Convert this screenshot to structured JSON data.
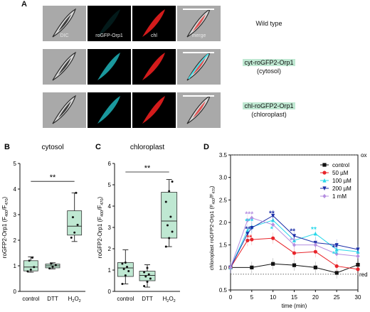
{
  "panel_a": {
    "letter": "A",
    "col_labels": [
      "DIC",
      "roGFP-Orp1",
      "chl",
      "merge"
    ],
    "rows": [
      {
        "label_line1": "Wild type",
        "label_line2": ""
      },
      {
        "label_line1": "cyt-roGFP2-Orp1",
        "label_line2": "(cytosol)"
      },
      {
        "label_line1": "chl-roGFP2-Orp1",
        "label_line2": "(chloroplast)"
      }
    ],
    "highlight_color": "#bfe8d2"
  },
  "chart_data": [
    {
      "panel": "B",
      "type": "box",
      "title": "cytosol",
      "ylabel": "roGFP2-Orp1 (F400/F470)",
      "categories": [
        "control",
        "DTT",
        "H2O2"
      ],
      "ylim": [
        0,
        5
      ],
      "yticks": [
        0,
        1,
        2,
        3,
        4,
        5
      ],
      "boxes": [
        {
          "min": 0.75,
          "q1": 0.8,
          "median": 0.95,
          "q3": 1.2,
          "max": 1.35,
          "points": [
            0.78,
            0.85,
            0.95,
            1.2,
            1.32
          ]
        },
        {
          "min": 0.88,
          "q1": 0.92,
          "median": 1.0,
          "q3": 1.07,
          "max": 1.12,
          "points": [
            0.9,
            0.97,
            1.02,
            1.08
          ]
        },
        {
          "min": 1.95,
          "q1": 2.2,
          "median": 2.55,
          "q3": 3.15,
          "max": 3.85,
          "points": [
            2.1,
            2.3,
            2.6,
            2.9,
            3.85
          ]
        }
      ],
      "significance": {
        "from": 0,
        "to": 2,
        "y": 4.3,
        "label": "**"
      },
      "box_color": "#bfe8d2"
    },
    {
      "panel": "C",
      "type": "box",
      "title": "chloroplast",
      "ylabel": "roGFP2-Orp1 (F400/F470)",
      "categories": [
        "control",
        "DTT",
        "H2O2"
      ],
      "ylim": [
        0,
        6
      ],
      "yticks": [
        0,
        1,
        2,
        3,
        4,
        5,
        6
      ],
      "boxes": [
        {
          "min": 0.35,
          "q1": 0.7,
          "median": 1.1,
          "q3": 1.35,
          "max": 1.95,
          "points": [
            0.35,
            0.75,
            0.95,
            1.05,
            1.15,
            1.3,
            1.35
          ]
        },
        {
          "min": 0.2,
          "q1": 0.5,
          "median": 0.75,
          "q3": 0.95,
          "max": 1.25,
          "points": [
            0.25,
            0.45,
            0.6,
            0.7,
            0.8,
            0.9,
            1.1
          ]
        },
        {
          "min": 2.1,
          "q1": 2.5,
          "median": 3.3,
          "q3": 4.65,
          "max": 5.25,
          "points": [
            2.1,
            2.5,
            2.8,
            3.1,
            3.5,
            4.2,
            4.7,
            5.15
          ]
        }
      ],
      "significance": {
        "from": 0,
        "to": 2,
        "y": 5.6,
        "label": "**"
      },
      "box_color": "#bfe8d2"
    },
    {
      "panel": "D",
      "type": "line",
      "ylabel": "chloroplast roGFP2-Orp1 (F400/F470)",
      "xlabel": "time (min)",
      "xlim": [
        0,
        30
      ],
      "ylim": [
        0.5,
        3.5
      ],
      "xticks": [
        0,
        5,
        10,
        15,
        20,
        25,
        30
      ],
      "yticks": [
        0.5,
        1.0,
        1.5,
        2.0,
        2.5,
        3.0,
        3.5
      ],
      "ox_level": 3.5,
      "red_level": 0.85,
      "ox_label": "ox",
      "red_label": "red",
      "legend_position": "top-right",
      "series": [
        {
          "name": "control",
          "color": "#111111",
          "marker": "square",
          "x": [
            0,
            5,
            10,
            15,
            20,
            25,
            30
          ],
          "y": [
            1.0,
            1.0,
            1.08,
            1.05,
            1.0,
            0.88,
            1.06
          ]
        },
        {
          "name": "50 µM",
          "color": "#e8242a",
          "marker": "circle",
          "x": [
            0,
            4,
            5,
            10,
            15,
            20,
            25,
            30
          ],
          "y": [
            1.0,
            1.6,
            1.62,
            1.65,
            1.32,
            1.35,
            1.03,
            0.96
          ]
        },
        {
          "name": "100 µM",
          "color": "#27d8ea",
          "marker": "triangle-up",
          "x": [
            0,
            4,
            5,
            10,
            15,
            20,
            25,
            30
          ],
          "y": [
            1.0,
            1.82,
            1.9,
            2.05,
            1.6,
            1.75,
            1.4,
            1.35
          ]
        },
        {
          "name": "200 µM",
          "color": "#1d2fa8",
          "marker": "triangle-down",
          "x": [
            0,
            4,
            5,
            10,
            15,
            20,
            25,
            30
          ],
          "y": [
            1.0,
            1.75,
            1.88,
            2.15,
            1.7,
            1.55,
            1.5,
            1.4
          ]
        },
        {
          "name": "1 mM",
          "color": "#b58ee0",
          "marker": "diamond",
          "x": [
            0,
            4,
            5,
            10,
            15,
            20,
            25,
            30
          ],
          "y": [
            1.0,
            2.05,
            2.1,
            1.95,
            1.5,
            1.5,
            1.3,
            1.25
          ]
        }
      ],
      "stars": [
        {
          "x": 4.4,
          "y": 2.18,
          "color": "#b58ee0",
          "label": "***"
        },
        {
          "x": 4.4,
          "y": 2.02,
          "color": "#27d8ea",
          "label": "***"
        },
        {
          "x": 4.4,
          "y": 1.85,
          "color": "#1d2fa8",
          "label": "***"
        },
        {
          "x": 4.4,
          "y": 1.66,
          "color": "#e8242a",
          "label": "**"
        },
        {
          "x": 9.7,
          "y": 2.2,
          "color": "#1d2fa8",
          "label": "**"
        },
        {
          "x": 9.7,
          "y": 1.85,
          "color": "#27d8ea",
          "label": "*"
        },
        {
          "x": 14.6,
          "y": 1.8,
          "color": "#1d2fa8",
          "label": "**"
        },
        {
          "x": 14.6,
          "y": 1.6,
          "color": "#b58ee0",
          "label": "**"
        },
        {
          "x": 19.6,
          "y": 1.84,
          "color": "#27d8ea",
          "label": "**"
        },
        {
          "x": 24.6,
          "y": 1.44,
          "color": "#1d2fa8",
          "label": "**"
        },
        {
          "x": 24.6,
          "y": 1.3,
          "color": "#27d8ea",
          "label": "**"
        }
      ]
    }
  ]
}
